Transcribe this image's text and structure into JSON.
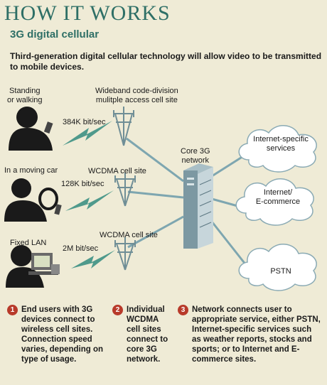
{
  "header": {
    "title": "HOW IT WORKS",
    "subtitle": "3G digital cellular",
    "intro": "Third-generation digital cellular technology will allow video to be transmitted to mobile devices."
  },
  "users": {
    "standing": "Standing\nor walking",
    "car": "In a moving car",
    "lan": "Fixed LAN"
  },
  "speeds": {
    "standing": "384K bit/sec",
    "car": "128K bit/sec",
    "lan": "2M bit/sec"
  },
  "sites": {
    "wideband": "Wideband code-division\nmulitple access cell site",
    "car": "WCDMA cell site",
    "lan": "WCDMA cell site"
  },
  "network": {
    "core": "Core 3G\nnetwork"
  },
  "services": {
    "internet_specific": "Internet-specific\nservices",
    "internet_ecommerce": "Internet/\nE-commerce",
    "pstn": "PSTN"
  },
  "steps": [
    {
      "number": "1",
      "text": "End users with 3G devices connect to wireless cell sites. Connection speed varies, depending on type of usage."
    },
    {
      "number": "2",
      "text": "Individual WCDMA cell sites connect to core 3G network."
    },
    {
      "number": "3",
      "text": "Network connects user to appropriate service, either PSTN, Internet-specific services such as weather reports, stocks and sports; or to Internet and E-commerce sites."
    }
  ],
  "colors": {
    "title": "#2e6f66",
    "bolt": "#4f9a8c",
    "line": "#7ea6b0",
    "badge": "#b83a2a"
  }
}
